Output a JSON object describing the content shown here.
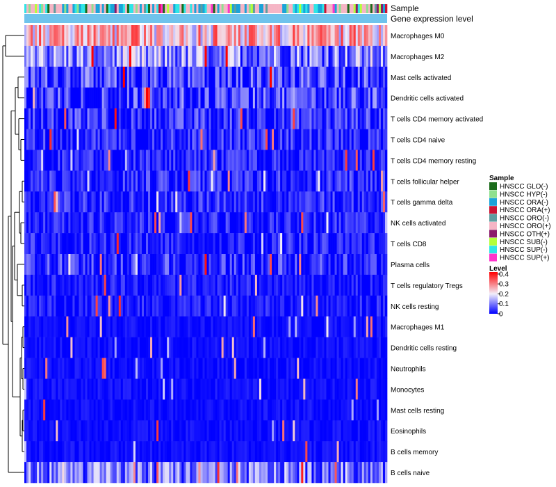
{
  "chart_data": {
    "type": "heatmap",
    "annotation_tracks": [
      "Sample",
      "Gene expression level"
    ],
    "annotation_colors": {
      "Gene expression level": "#6fc3ec"
    },
    "rows": [
      "Macrophages M0",
      "Macrophages M2",
      "Mast cells activated",
      "Dendritic cells activated",
      "T cells CD4 memory activated",
      "T cells CD4 naive",
      "T cells CD4 memory resting",
      "T cells follicular helper",
      "T cells gamma delta",
      "NK cells activated",
      "T cells CD8",
      "Plasma cells",
      "T cells regulatory  Tregs",
      "NK cells resting",
      "Macrophages M1",
      "Dendritic cells resting",
      "Neutrophils",
      "Monocytes",
      "Mast cells resting",
      "Eosinophils",
      "B cells memory",
      "B cells naive"
    ],
    "row_mean_levels": [
      0.3,
      0.14,
      0.09,
      0.09,
      0.07,
      0.06,
      0.05,
      0.06,
      0.06,
      0.05,
      0.05,
      0.07,
      0.04,
      0.04,
      0.02,
      0.02,
      0.02,
      0.02,
      0.02,
      0.02,
      0.02,
      0.12
    ],
    "n_samples": 173,
    "color_scale": {
      "min": 0,
      "max": 0.42,
      "stops": [
        {
          "value": 0,
          "color": "#0000ff"
        },
        {
          "value": 0.2,
          "color": "#f2eefa"
        },
        {
          "value": 0.42,
          "color": "#ff0000"
        }
      ],
      "ticks": [
        "0.4",
        "0.3",
        "0.2",
        "0.1",
        "0"
      ]
    },
    "legend": {
      "sample_title": "Sample",
      "level_title": "Level",
      "groups": [
        {
          "label": "HNSCC GLO(-)",
          "color": "#1a6b1a"
        },
        {
          "label": "HNSCC HYP(-)",
          "color": "#8fe08f"
        },
        {
          "label": "HNSCC ORA(-)",
          "color": "#1aa3d9"
        },
        {
          "label": "HNSCC ORA(+)",
          "color": "#cc1433"
        },
        {
          "label": "HNSCC ORO(-)",
          "color": "#5f9ea0"
        },
        {
          "label": "HNSCC ORO(+)",
          "color": "#f5b5c5"
        },
        {
          "label": "HNSCC OTH(+)",
          "color": "#8b1a6b"
        },
        {
          "label": "HNSCC SUB(-)",
          "color": "#b3ff3a"
        },
        {
          "label": "HNSCC SUP(-)",
          "color": "#2ee6e6"
        },
        {
          "label": "HNSCC SUP(+)",
          "color": "#ff33cc"
        }
      ]
    }
  }
}
